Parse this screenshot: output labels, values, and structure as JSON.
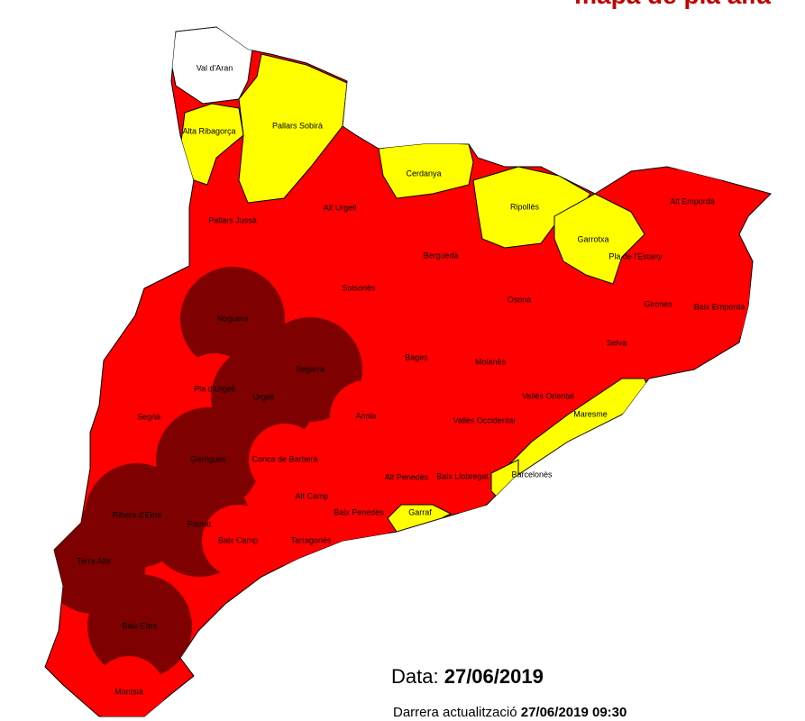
{
  "title": "mapa de pla alfa",
  "regions": [
    {
      "name": "Val d'Aran",
      "color": "#ffffff"
    },
    {
      "name": "Alta Ribagorça",
      "color": "#ffff00"
    },
    {
      "name": "Pallars Sobirà",
      "color": "#ffff00"
    },
    {
      "name": "Cerdanya",
      "color": "#ffff00"
    },
    {
      "name": "Ripollès",
      "color": "#ffff00"
    },
    {
      "name": "Garrotxa",
      "color": "#ffff00"
    },
    {
      "name": "Alt Empordà",
      "color": "#ff0000"
    },
    {
      "name": "Pla de l'Estany",
      "color": "#ff0000"
    },
    {
      "name": "Gironès",
      "color": "#ff0000"
    },
    {
      "name": "Baix Empordà",
      "color": "#ff0000"
    },
    {
      "name": "Selva",
      "color": "#ff0000"
    },
    {
      "name": "Maresme",
      "color": "#ffff00"
    },
    {
      "name": "Barcelonès",
      "color": "#ffff00"
    },
    {
      "name": "Garraf",
      "color": "#ffff00"
    },
    {
      "name": "Pallars Jussà",
      "color": "#ff0000"
    },
    {
      "name": "Alt Urgell",
      "color": "#ff0000"
    },
    {
      "name": "Berguedà",
      "color": "#ff0000"
    },
    {
      "name": "Solsonès",
      "color": "#ff0000"
    },
    {
      "name": "Osona",
      "color": "#ff0000"
    },
    {
      "name": "Noguera",
      "color": "#7f0000"
    },
    {
      "name": "Segarra",
      "color": "#7f0000"
    },
    {
      "name": "Pla d'Urgell",
      "color": "#ff0000"
    },
    {
      "name": "Urgell",
      "color": "#7f0000"
    },
    {
      "name": "Bages",
      "color": "#ff0000"
    },
    {
      "name": "Moianès",
      "color": "#ff0000"
    },
    {
      "name": "Vallès Oriental",
      "color": "#ff0000"
    },
    {
      "name": "Vallès Occidental",
      "color": "#ff0000"
    },
    {
      "name": "Anoia",
      "color": "#ff0000"
    },
    {
      "name": "Segrià",
      "color": "#ff0000"
    },
    {
      "name": "Garrigues",
      "color": "#7f0000"
    },
    {
      "name": "Conca de Barberà",
      "color": "#ff0000"
    },
    {
      "name": "Alt Penedès",
      "color": "#ff0000"
    },
    {
      "name": "Baix Llobregat",
      "color": "#ff0000"
    },
    {
      "name": "Alt Camp",
      "color": "#ff0000"
    },
    {
      "name": "Baix Penedès",
      "color": "#ff0000"
    },
    {
      "name": "Priorat",
      "color": "#7f0000"
    },
    {
      "name": "Ribera d'Ebre",
      "color": "#7f0000"
    },
    {
      "name": "Baix Camp",
      "color": "#ff0000"
    },
    {
      "name": "Tarragonès",
      "color": "#ff0000"
    },
    {
      "name": "Terra Alta",
      "color": "#7f0000"
    },
    {
      "name": "Baix Ebre",
      "color": "#7f0000"
    },
    {
      "name": "Montsià",
      "color": "#ff0000"
    }
  ],
  "footer": {
    "date_label": "Data:",
    "date": "27/06/2019",
    "update_label": "Darrera actualització",
    "update_datetime": "27/06/2019 09:30"
  }
}
